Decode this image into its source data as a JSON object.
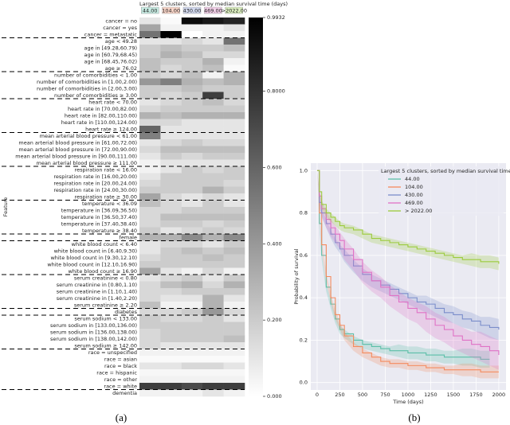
{
  "chart_data": [
    {
      "type": "heatmap",
      "title": "Largest 5 clusters, sorted by median survival time (days)",
      "categories": [
        "44.00",
        "104.00",
        "430.00",
        "469.00",
        ">2022.00"
      ],
      "header_colors": [
        "#c7ebe2",
        "#f9d5c8",
        "#d2d9ef",
        "#f2cfe8",
        "#dbefbf"
      ],
      "ylabel": "Feature",
      "caption": "(a)",
      "zlim": [
        0,
        0.9932
      ],
      "zticks": [
        {
          "value": 0,
          "label": "0.000"
        },
        {
          "value": 0.2,
          "label": "0.200"
        },
        {
          "value": 0.4,
          "label": "0.400"
        },
        {
          "value": 0.6,
          "label": "0.600"
        },
        {
          "value": 0.8,
          "label": "0.8000"
        },
        0.9932
      ],
      "rows": [
        "cancer = no",
        "cancer = yes",
        "cancer = metastatic",
        "age < 49.28",
        "age in [49.28,60.79)",
        "age in [60.79,68.45)",
        "age in [68.45,76.02)",
        "age ≥ 76.02",
        "number of comorbidities < 1.00",
        "number of comorbidities in [1.00,2.00)",
        "number of comorbidities in [2.00,3.00)",
        "number of comorbidities ≥ 3.00",
        "heart rate < 70.00",
        "heart rate in [70.00,82.00)",
        "heart rate in [82.00,110.00)",
        "heart rate in [110.00,124.00)",
        "heart rate ≥ 124.00",
        "mean arterial blood pressure < 61.00",
        "mean arterial blood pressure in [61.00,72.00)",
        "mean arterial blood pressure in [72.00,90.00)",
        "mean arterial blood pressure in [90.00,111.00)",
        "mean arterial blood pressure ≥ 111.00",
        "respiration rate < 16.00",
        "respiration rate in [16.00,20.00)",
        "respiration rate in [20.00,24.00)",
        "respiration rate in [24.00,30.00)",
        "respiration rate ≥ 30.00",
        "temperature < 36.09",
        "temperature in [36.09,36.50)",
        "temperature in [36.50,37.40)",
        "temperature in [37.40,38.40)",
        "temperature ≥ 38.40",
        "female",
        "white blood count < 6.40",
        "white blood count in [6.40,9.30)",
        "white blood count in [9.30,12.10)",
        "white blood count in [12.10,16.90)",
        "white blood count ≥ 16.90",
        "serum creatinine < 0.80",
        "serum creatinine in [0.80,1.10)",
        "serum creatinine in [1.10,1.40)",
        "serum creatinine in [1.40,2.20)",
        "serum creatinine ≥ 2.20",
        "diabetes",
        "serum sodium < 133.00",
        "serum sodium in [133.00,136.00)",
        "serum sodium in [136.00,138.00)",
        "serum sodium in [138.00,142.00)",
        "serum sodium ≥ 142.00",
        "race = unspecified",
        "race = asian",
        "race = black",
        "race = hispanic",
        "race = other",
        "race = white",
        "dementia"
      ],
      "values": [
        [
          0.1,
          0.02,
          0.95,
          0.9,
          0.85
        ],
        [
          0.35,
          0.05,
          0.05,
          0.05,
          0.1
        ],
        [
          0.55,
          0.99,
          0.0,
          0.05,
          0.05
        ],
        [
          0.1,
          0.1,
          0.15,
          0.1,
          0.55
        ],
        [
          0.2,
          0.25,
          0.2,
          0.2,
          0.25
        ],
        [
          0.2,
          0.3,
          0.25,
          0.15,
          0.15
        ],
        [
          0.25,
          0.2,
          0.2,
          0.3,
          0.05
        ],
        [
          0.25,
          0.15,
          0.2,
          0.25,
          0.02
        ],
        [
          0.2,
          0.15,
          0.25,
          0.05,
          0.3
        ],
        [
          0.4,
          0.5,
          0.3,
          0.25,
          0.3
        ],
        [
          0.2,
          0.2,
          0.25,
          0.2,
          0.2
        ],
        [
          0.2,
          0.15,
          0.2,
          0.75,
          0.2
        ],
        [
          0.1,
          0.15,
          0.2,
          0.25,
          0.15
        ],
        [
          0.15,
          0.2,
          0.2,
          0.2,
          0.2
        ],
        [
          0.3,
          0.25,
          0.3,
          0.3,
          0.3
        ],
        [
          0.15,
          0.15,
          0.1,
          0.1,
          0.1
        ],
        [
          0.6,
          0.1,
          0.1,
          0.1,
          0.1
        ],
        [
          0.5,
          0.1,
          0.1,
          0.1,
          0.1
        ],
        [
          0.1,
          0.15,
          0.2,
          0.15,
          0.15
        ],
        [
          0.15,
          0.25,
          0.25,
          0.25,
          0.25
        ],
        [
          0.1,
          0.2,
          0.15,
          0.2,
          0.2
        ],
        [
          0.05,
          0.1,
          0.1,
          0.1,
          0.1
        ],
        [
          0.05,
          0.1,
          0.2,
          0.15,
          0.2
        ],
        [
          0.1,
          0.2,
          0.2,
          0.2,
          0.2
        ],
        [
          0.15,
          0.2,
          0.2,
          0.2,
          0.15
        ],
        [
          0.2,
          0.2,
          0.2,
          0.3,
          0.2
        ],
        [
          0.35,
          0.15,
          0.1,
          0.15,
          0.1
        ],
        [
          0.25,
          0.15,
          0.1,
          0.2,
          0.1
        ],
        [
          0.15,
          0.15,
          0.2,
          0.2,
          0.2
        ],
        [
          0.15,
          0.25,
          0.25,
          0.25,
          0.25
        ],
        [
          0.15,
          0.2,
          0.2,
          0.15,
          0.2
        ],
        [
          0.2,
          0.1,
          0.15,
          0.2,
          0.15
        ],
        [
          0.3,
          0.3,
          0.45,
          0.3,
          0.45
        ],
        [
          0.1,
          0.15,
          0.15,
          0.1,
          0.2
        ],
        [
          0.1,
          0.2,
          0.25,
          0.2,
          0.25
        ],
        [
          0.15,
          0.2,
          0.2,
          0.25,
          0.2
        ],
        [
          0.2,
          0.2,
          0.2,
          0.2,
          0.2
        ],
        [
          0.35,
          0.1,
          0.05,
          0.15,
          0.05
        ],
        [
          0.1,
          0.15,
          0.2,
          0.1,
          0.2
        ],
        [
          0.15,
          0.25,
          0.3,
          0.15,
          0.3
        ],
        [
          0.15,
          0.15,
          0.2,
          0.2,
          0.2
        ],
        [
          0.15,
          0.1,
          0.1,
          0.3,
          0.1
        ],
        [
          0.25,
          0.05,
          0.05,
          0.3,
          0.05
        ],
        [
          0.15,
          0.15,
          0.2,
          0.4,
          0.15
        ],
        [
          0.2,
          0.15,
          0.15,
          0.2,
          0.1
        ],
        [
          0.2,
          0.2,
          0.2,
          0.2,
          0.2
        ],
        [
          0.15,
          0.2,
          0.2,
          0.2,
          0.2
        ],
        [
          0.15,
          0.2,
          0.2,
          0.2,
          0.25
        ],
        [
          0.15,
          0.1,
          0.1,
          0.1,
          0.1
        ],
        [
          0.05,
          0.05,
          0.05,
          0.05,
          0.05
        ],
        [
          0.02,
          0.02,
          0.02,
          0.02,
          0.02
        ],
        [
          0.1,
          0.1,
          0.15,
          0.15,
          0.1
        ],
        [
          0.03,
          0.03,
          0.03,
          0.03,
          0.03
        ],
        [
          0.05,
          0.05,
          0.05,
          0.05,
          0.05
        ],
        [
          0.75,
          0.75,
          0.7,
          0.75,
          0.75
        ],
        [
          0.05,
          0.05,
          0.05,
          0.1,
          0.05
        ]
      ]
    },
    {
      "type": "line",
      "legend_title": "Largest 5 clusters, sorted by median survival time (days)",
      "xlabel": "Time (days)",
      "ylabel": "Probability of survival",
      "caption": "(b)",
      "grid": true,
      "legend": "upper right",
      "xlim": [
        -70,
        2080
      ],
      "ylim": [
        -0.035,
        1.035
      ],
      "xticks": [
        0,
        250,
        500,
        750,
        1000,
        1250,
        1500,
        1750,
        2000
      ],
      "yticks": [
        {
          "value": 0,
          "label": "0.0"
        },
        {
          "value": 0.2,
          "label": "0.2"
        },
        {
          "value": 0.4,
          "label": "0.4"
        },
        {
          "value": 0.6,
          "label": "0.6"
        },
        {
          "value": 0.8,
          "label": "0.8"
        },
        {
          "value": 1,
          "label": "1.0"
        }
      ],
      "x": [
        0,
        25,
        50,
        100,
        150,
        200,
        250,
        300,
        400,
        500,
        600,
        700,
        800,
        900,
        1000,
        1100,
        1200,
        1300,
        1400,
        1500,
        1600,
        1700,
        1800,
        1900,
        2000
      ],
      "series": [
        {
          "name": "44.00",
          "color": "#5bbfa8",
          "values": [
            1.0,
            0.75,
            0.6,
            0.45,
            0.37,
            0.3,
            0.25,
            0.23,
            0.2,
            0.18,
            0.17,
            0.16,
            0.15,
            0.15,
            0.14,
            0.14,
            0.13,
            0.13,
            0.12,
            0.12,
            0.12,
            0.12,
            0.11,
            0.11,
            null
          ],
          "errors": [
            0,
            0.02,
            0.02,
            0.02,
            0.02,
            0.02,
            0.02,
            0.02,
            0.02,
            0.02,
            0.02,
            0.02,
            0.02,
            0.03,
            0.03,
            0.03,
            0.03,
            0.03,
            0.03,
            0.03,
            0.04,
            0.04,
            0.04,
            0.04,
            null
          ]
        },
        {
          "name": "104.00",
          "color": "#f58b5e",
          "values": [
            1.0,
            0.8,
            0.65,
            0.5,
            0.4,
            0.32,
            0.27,
            0.22,
            0.17,
            0.14,
            0.12,
            0.1,
            0.09,
            0.09,
            0.08,
            0.08,
            0.07,
            0.07,
            0.06,
            0.06,
            0.06,
            0.06,
            0.05,
            0.05,
            0.05
          ],
          "errors": [
            0,
            0.02,
            0.02,
            0.02,
            0.02,
            0.02,
            0.02,
            0.02,
            0.02,
            0.02,
            0.02,
            0.02,
            0.02,
            0.02,
            0.02,
            0.02,
            0.02,
            0.02,
            0.02,
            0.02,
            0.03,
            0.03,
            0.03,
            0.03,
            0.03
          ]
        },
        {
          "name": "430.00",
          "color": "#7b8ecb",
          "values": [
            1.0,
            0.85,
            0.8,
            0.75,
            0.7,
            0.66,
            0.63,
            0.6,
            0.55,
            0.51,
            0.48,
            0.46,
            0.44,
            0.42,
            0.4,
            0.38,
            0.37,
            0.35,
            0.33,
            0.32,
            0.3,
            0.29,
            0.27,
            0.26,
            0.25
          ],
          "errors": [
            0,
            0.02,
            0.02,
            0.02,
            0.02,
            0.02,
            0.02,
            0.03,
            0.03,
            0.03,
            0.03,
            0.03,
            0.03,
            0.03,
            0.03,
            0.03,
            0.04,
            0.04,
            0.04,
            0.04,
            0.04,
            0.04,
            0.04,
            0.05,
            0.05
          ]
        },
        {
          "name": "469.00",
          "color": "#e072c6",
          "values": [
            1.0,
            0.88,
            0.82,
            0.77,
            0.73,
            0.7,
            0.67,
            0.63,
            0.58,
            0.52,
            0.48,
            0.45,
            0.41,
            0.38,
            0.35,
            0.33,
            0.3,
            0.27,
            0.25,
            0.22,
            0.2,
            0.18,
            0.17,
            0.15,
            0.13
          ],
          "errors": [
            0,
            0.03,
            0.03,
            0.04,
            0.04,
            0.04,
            0.04,
            0.05,
            0.05,
            0.05,
            0.05,
            0.05,
            0.05,
            0.05,
            0.05,
            0.05,
            0.06,
            0.06,
            0.06,
            0.06,
            0.06,
            0.06,
            0.07,
            0.07,
            0.07
          ]
        },
        {
          "name": "> 2022.00",
          "color": "#9ccb3c",
          "values": [
            1.0,
            0.9,
            0.84,
            0.8,
            0.78,
            0.76,
            0.74,
            0.73,
            0.72,
            0.7,
            0.68,
            0.67,
            0.66,
            0.65,
            0.64,
            0.63,
            0.62,
            0.61,
            0.6,
            0.59,
            0.58,
            0.58,
            0.57,
            0.57,
            0.56
          ],
          "errors": [
            0,
            0.01,
            0.02,
            0.02,
            0.02,
            0.02,
            0.02,
            0.02,
            0.02,
            0.02,
            0.02,
            0.02,
            0.02,
            0.02,
            0.02,
            0.02,
            0.02,
            0.02,
            0.02,
            0.02,
            0.02,
            0.03,
            0.03,
            0.03,
            0.03
          ]
        }
      ]
    }
  ]
}
